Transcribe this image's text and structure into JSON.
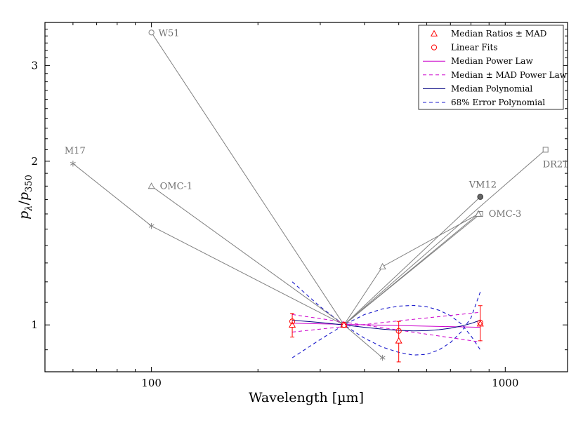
{
  "chart_data": {
    "type": "line",
    "x_scale": "log",
    "y_scale": "log",
    "xlim": [
      50,
      1500
    ],
    "ylim": [
      0.82,
      3.6
    ],
    "xlabel": "Wavelength [µm]",
    "ylabel": "pλ/p350",
    "x_ticks": [
      {
        "value": 100,
        "label": "100"
      },
      {
        "value": 1000,
        "label": "1000"
      }
    ],
    "y_ticks": [
      {
        "value": 1,
        "label": "1"
      },
      {
        "value": 2,
        "label": "2"
      },
      {
        "value": 3,
        "label": "3"
      }
    ],
    "sources": [
      {
        "name": "W51",
        "marker": "circle-open",
        "x": [
          100,
          350
        ],
        "y": [
          3.45,
          1.0
        ]
      },
      {
        "name": "M17",
        "marker": "star",
        "x": [
          60,
          100,
          350,
          450
        ],
        "y": [
          1.98,
          1.52,
          1.0,
          0.87
        ]
      },
      {
        "name": "OMC-1",
        "marker": "triangle-open",
        "x": [
          100,
          350
        ],
        "y": [
          1.8,
          1.0
        ]
      },
      {
        "name": "DR21",
        "marker": "square-open",
        "x": [
          350,
          1300
        ],
        "y": [
          1.0,
          2.1
        ]
      },
      {
        "name": "VM12",
        "marker": "circle-filled",
        "x": [
          350,
          850
        ],
        "y": [
          1.0,
          1.72
        ]
      },
      {
        "name": "OMC-3",
        "marker": "square-open",
        "x": [
          350,
          850
        ],
        "y": [
          1.0,
          1.6
        ]
      },
      {
        "name": "",
        "marker": "triangle-open",
        "x": [
          350,
          450,
          840
        ],
        "y": [
          1.0,
          1.28,
          1.6
        ]
      },
      {
        "name": "",
        "marker": "triangle-open",
        "x": [
          350,
          840
        ],
        "y": [
          1.0,
          1.6
        ]
      }
    ],
    "median_ratios": {
      "x": [
        250,
        350,
        500,
        850
      ],
      "y": [
        1.0,
        1.0,
        0.935,
        1.005
      ],
      "mad_low": [
        0.05,
        0.0,
        0.08,
        0.07
      ],
      "mad_high": [
        0.05,
        0.0,
        0.08,
        0.08
      ]
    },
    "linear_fits": {
      "x": [
        250,
        350,
        500,
        850
      ],
      "y": [
        1.015,
        1.0,
        0.975,
        1.01
      ]
    },
    "median_power_law": {
      "x": [
        250,
        850
      ],
      "y": [
        1.007,
        0.99
      ]
    },
    "mad_power_law": [
      {
        "x": [
          250,
          850
        ],
        "y": [
          0.97,
          1.055
        ]
      },
      {
        "x": [
          250,
          850
        ],
        "y": [
          1.045,
          0.93
        ]
      }
    ],
    "median_polynomial": {
      "x": [
        250,
        300,
        350,
        400,
        450,
        500,
        550,
        600,
        650,
        700,
        750,
        800,
        850
      ],
      "y": [
        1.02,
        1.01,
        1.0,
        0.99,
        0.982,
        0.977,
        0.975,
        0.976,
        0.98,
        0.986,
        0.995,
        1.006,
        1.02
      ]
    },
    "error_polynomial": [
      {
        "x": [
          250,
          300,
          350,
          400,
          450,
          500,
          550,
          600,
          650,
          700,
          750,
          800,
          850
        ],
        "y": [
          1.2,
          1.08,
          1.0,
          0.945,
          0.91,
          0.89,
          0.88,
          0.883,
          0.9,
          0.928,
          0.97,
          1.03,
          1.15
        ]
      },
      {
        "x": [
          250,
          300,
          350,
          400,
          450,
          500,
          550,
          600,
          650,
          700,
          750,
          800,
          850
        ],
        "y": [
          0.87,
          0.94,
          1.0,
          1.045,
          1.07,
          1.083,
          1.086,
          1.08,
          1.064,
          1.04,
          1.005,
          0.955,
          0.9
        ]
      }
    ],
    "legend": {
      "position": "top-right",
      "entries": [
        "Median Ratios ± MAD",
        "Linear Fits",
        "Median Power Law",
        "Median ± MAD Power Law",
        "Median Polynomial",
        "68% Error Polynomial"
      ]
    },
    "colors": {
      "source": "#808080",
      "ratios": "#ff0000",
      "power_law": "#cc00cc",
      "polynomial": "#000080",
      "error_poly": "#1a1acc"
    }
  }
}
